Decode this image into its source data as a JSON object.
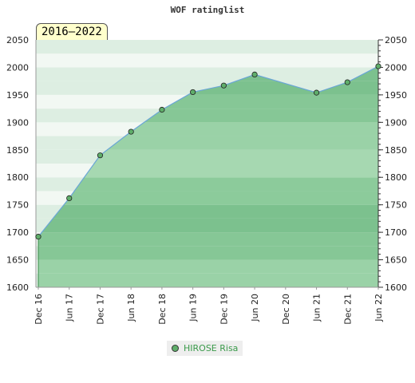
{
  "title": "WOF ratinglist",
  "badge": "2016–2022",
  "colors": {
    "band_light": [
      "#ddeee2",
      "#f2f8f3",
      "#ddeee2",
      "#f2f8f3",
      "#ddeee2"
    ],
    "fill": "#79c08c",
    "line": "#6aa6d6",
    "marker": "#5fae6a"
  },
  "chart_data": {
    "type": "area",
    "title": "WOF ratinglist",
    "x": [
      "Dec 16",
      "Jun 17",
      "Dec 17",
      "Jun 18",
      "Dec 18",
      "Jun 19",
      "Dec 19",
      "Jun 20",
      "Dec 20",
      "Jun 21",
      "Dec 21",
      "Jun 22"
    ],
    "series": [
      {
        "name": "HIROSE Risa",
        "points": [
          [
            0,
            1692
          ],
          [
            1,
            1762
          ],
          [
            2,
            1840
          ],
          [
            3,
            1883
          ],
          [
            4,
            1923
          ],
          [
            5,
            1955
          ],
          [
            6,
            1967
          ],
          [
            7,
            1987
          ],
          [
            9,
            1954
          ],
          [
            10,
            1973
          ],
          [
            11,
            2002
          ]
        ]
      }
    ],
    "ylim": [
      1600,
      2050
    ],
    "yticks": [
      1600,
      1650,
      1700,
      1750,
      1800,
      1850,
      1900,
      1950,
      2000,
      2050
    ],
    "grid": true,
    "legend": "bottom"
  }
}
